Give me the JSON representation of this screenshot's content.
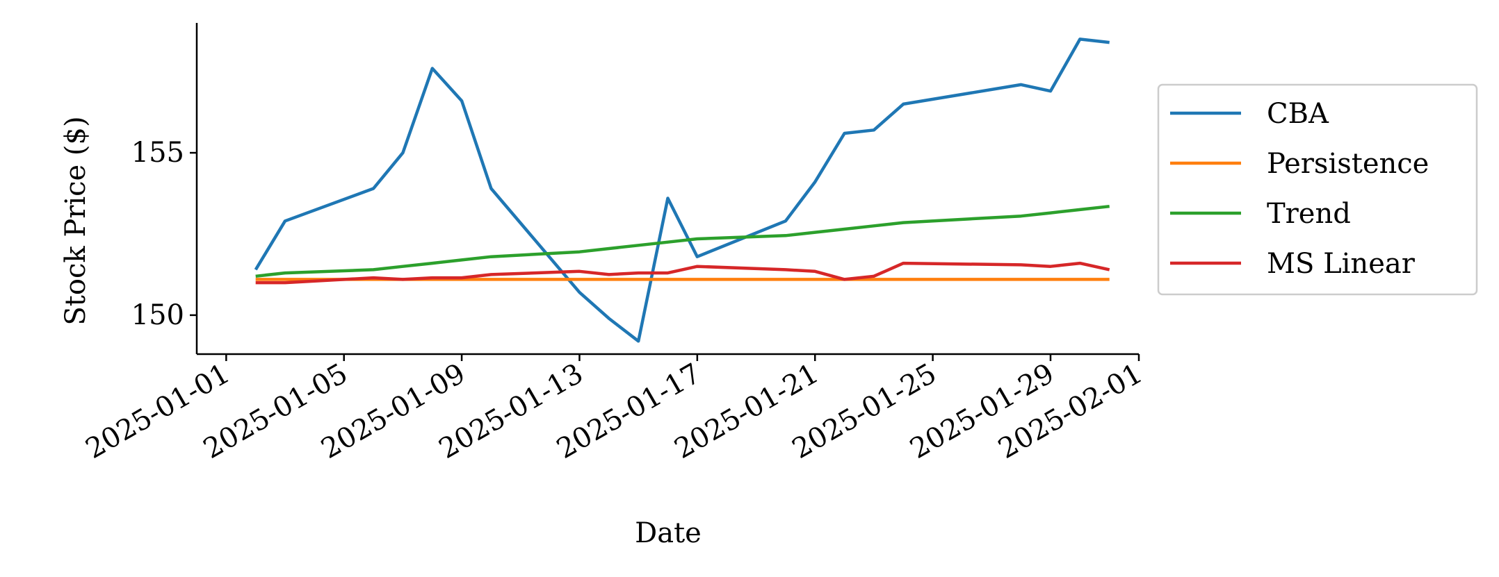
{
  "chart_data": {
    "type": "line",
    "title": "",
    "xlabel": "Date",
    "ylabel": "Stock Price ($)",
    "x_tick_labels": [
      "2025-01-01",
      "2025-01-05",
      "2025-01-09",
      "2025-01-13",
      "2025-01-17",
      "2025-01-21",
      "2025-01-25",
      "2025-01-29",
      "2025-02-01"
    ],
    "y_ticks": [
      150,
      155
    ],
    "xlim": [
      "2024-12-31",
      "2025-02-01"
    ],
    "ylim": [
      148.8,
      159.0
    ],
    "grid": false,
    "legend_position": "right",
    "x": [
      "2025-01-02",
      "2025-01-03",
      "2025-01-06",
      "2025-01-07",
      "2025-01-08",
      "2025-01-09",
      "2025-01-10",
      "2025-01-13",
      "2025-01-14",
      "2025-01-15",
      "2025-01-16",
      "2025-01-17",
      "2025-01-20",
      "2025-01-21",
      "2025-01-22",
      "2025-01-23",
      "2025-01-24",
      "2025-01-28",
      "2025-01-29",
      "2025-01-30",
      "2025-01-31"
    ],
    "series": [
      {
        "name": "CBA",
        "color": "#1f77b4",
        "values": [
          151.4,
          152.9,
          153.9,
          155.0,
          157.6,
          156.6,
          153.9,
          150.7,
          149.9,
          149.2,
          153.6,
          151.8,
          152.9,
          154.1,
          155.6,
          155.7,
          156.5,
          157.1,
          156.9,
          158.5,
          158.4
        ]
      },
      {
        "name": "Persistence",
        "color": "#ff7f0e",
        "values": [
          151.1,
          151.1,
          151.1,
          151.1,
          151.1,
          151.1,
          151.1,
          151.1,
          151.1,
          151.1,
          151.1,
          151.1,
          151.1,
          151.1,
          151.1,
          151.1,
          151.1,
          151.1,
          151.1,
          151.1,
          151.1
        ]
      },
      {
        "name": "Trend",
        "color": "#2ca02c",
        "values": [
          151.2,
          151.3,
          151.4,
          151.5,
          151.6,
          151.7,
          151.8,
          151.95,
          152.05,
          152.15,
          152.25,
          152.35,
          152.45,
          152.55,
          152.65,
          152.75,
          152.85,
          153.05,
          153.15,
          153.25,
          153.35
        ]
      },
      {
        "name": "MS Linear",
        "color": "#d62728",
        "values": [
          151.0,
          151.0,
          151.15,
          151.1,
          151.15,
          151.15,
          151.25,
          151.35,
          151.25,
          151.3,
          151.3,
          151.5,
          151.4,
          151.35,
          151.1,
          151.2,
          151.6,
          151.55,
          151.5,
          151.6,
          151.4
        ]
      }
    ]
  }
}
